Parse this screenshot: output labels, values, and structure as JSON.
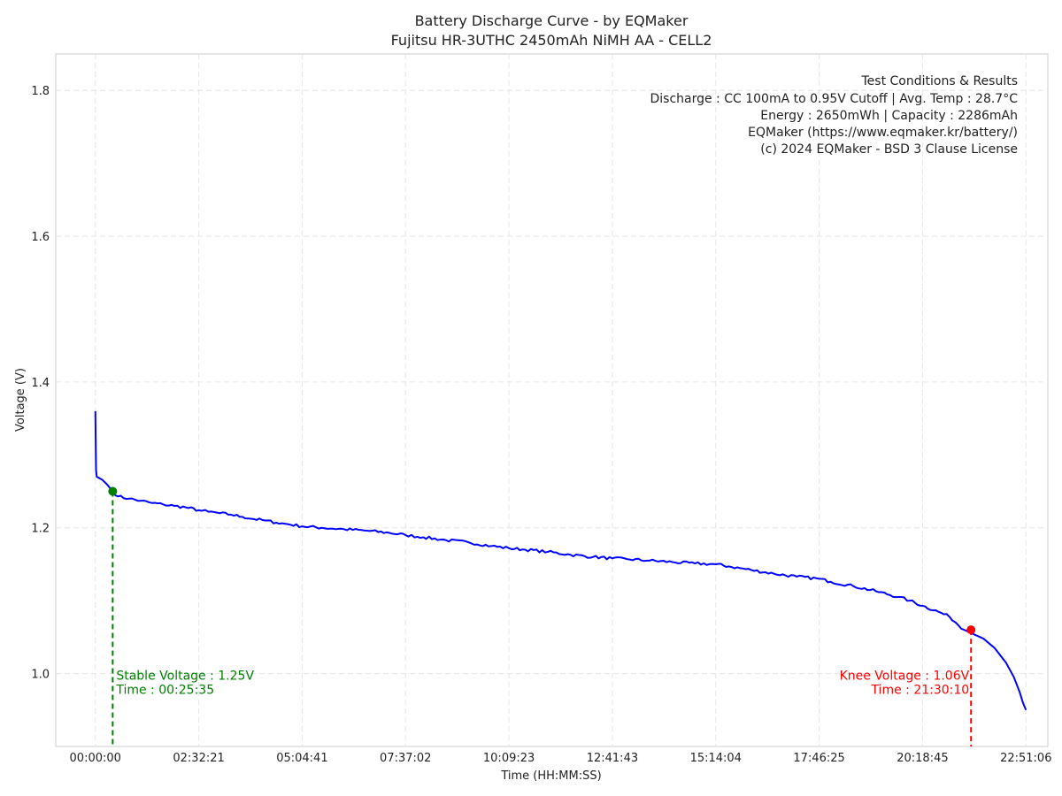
{
  "chart_data": {
    "type": "line",
    "title_line1": "Battery Discharge Curve - by EQMaker",
    "title_line2": "Fujitsu HR-3UTHC 2450mAh NiMH AA - CELL2",
    "xlabel": "Time (HH:MM:SS)",
    "ylabel": "Voltage (V)",
    "xlim_seconds": [
      -3500,
      84200
    ],
    "ylim": [
      0.9,
      1.85
    ],
    "x_ticks": [
      {
        "seconds": 0,
        "label": "00:00:00"
      },
      {
        "seconds": 9141,
        "label": "02:32:21"
      },
      {
        "seconds": 18281,
        "label": "05:04:41"
      },
      {
        "seconds": 27422,
        "label": "07:37:02"
      },
      {
        "seconds": 36563,
        "label": "10:09:23"
      },
      {
        "seconds": 45703,
        "label": "12:41:43"
      },
      {
        "seconds": 54844,
        "label": "15:14:04"
      },
      {
        "seconds": 63985,
        "label": "17:46:25"
      },
      {
        "seconds": 73125,
        "label": "20:18:45"
      },
      {
        "seconds": 82266,
        "label": "22:51:06"
      }
    ],
    "y_ticks": [
      {
        "value": 1.0,
        "label": "1.0"
      },
      {
        "value": 1.2,
        "label": "1.2"
      },
      {
        "value": 1.4,
        "label": "1.4"
      },
      {
        "value": 1.6,
        "label": "1.6"
      },
      {
        "value": 1.8,
        "label": "1.8"
      }
    ],
    "grid": true,
    "series": [
      {
        "name": "Voltage",
        "color": "#0000ff",
        "points": [
          [
            0,
            1.36
          ],
          [
            60,
            1.28
          ],
          [
            120,
            1.27
          ],
          [
            600,
            1.266
          ],
          [
            1000,
            1.26
          ],
          [
            1535,
            1.25
          ],
          [
            2000,
            1.243
          ],
          [
            3000,
            1.24
          ],
          [
            4000,
            1.237
          ],
          [
            5000,
            1.234
          ],
          [
            6000,
            1.232
          ],
          [
            7000,
            1.23
          ],
          [
            8000,
            1.228
          ],
          [
            9141,
            1.224
          ],
          [
            10000,
            1.222
          ],
          [
            11000,
            1.22
          ],
          [
            12000,
            1.218
          ],
          [
            13000,
            1.215
          ],
          [
            14000,
            1.212
          ],
          [
            15000,
            1.21
          ],
          [
            16000,
            1.207
          ],
          [
            17000,
            1.205
          ],
          [
            18281,
            1.202
          ],
          [
            20000,
            1.2
          ],
          [
            22000,
            1.198
          ],
          [
            24000,
            1.196
          ],
          [
            26000,
            1.193
          ],
          [
            27422,
            1.19
          ],
          [
            29000,
            1.187
          ],
          [
            31000,
            1.183
          ],
          [
            33000,
            1.18
          ],
          [
            35000,
            1.175
          ],
          [
            36563,
            1.172
          ],
          [
            38000,
            1.17
          ],
          [
            40000,
            1.167
          ],
          [
            42000,
            1.163
          ],
          [
            44000,
            1.16
          ],
          [
            45703,
            1.158
          ],
          [
            47000,
            1.157
          ],
          [
            49000,
            1.155
          ],
          [
            51000,
            1.153
          ],
          [
            53000,
            1.151
          ],
          [
            54844,
            1.15
          ],
          [
            56000,
            1.147
          ],
          [
            58000,
            1.142
          ],
          [
            60000,
            1.137
          ],
          [
            62000,
            1.133
          ],
          [
            63985,
            1.13
          ],
          [
            65000,
            1.126
          ],
          [
            67000,
            1.12
          ],
          [
            69000,
            1.113
          ],
          [
            71000,
            1.105
          ],
          [
            72000,
            1.1
          ],
          [
            73125,
            1.093
          ],
          [
            74500,
            1.085
          ],
          [
            75500,
            1.078
          ],
          [
            76800,
            1.06
          ],
          [
            77500,
            1.055
          ],
          [
            78500,
            1.048
          ],
          [
            79500,
            1.035
          ],
          [
            80500,
            1.015
          ],
          [
            81200,
            0.995
          ],
          [
            81700,
            0.975
          ],
          [
            82000,
            0.96
          ],
          [
            82266,
            0.95
          ]
        ]
      }
    ],
    "noise_band_v": 0.004,
    "stable_point": {
      "seconds": 1535,
      "voltage": 1.25,
      "color": "#008000",
      "label_voltage": "Stable Voltage : 1.25V",
      "label_time": "Time : 00:25:35"
    },
    "knee_point": {
      "seconds": 77410,
      "voltage": 1.06,
      "color": "#ff0000",
      "label_voltage": "Knee Voltage : 1.06V",
      "label_time": "Time : 21:30:10"
    },
    "info_box": [
      "Test Conditions & Results",
      "Discharge : CC 100mA to 0.95V Cutoff | Avg. Temp : 28.7°C",
      "Energy : 2650mWh | Capacity : 2286mAh",
      "EQMaker (https://www.eqmaker.kr/battery/)",
      "(c) 2024 EQMaker - BSD 3 Clause License"
    ]
  }
}
